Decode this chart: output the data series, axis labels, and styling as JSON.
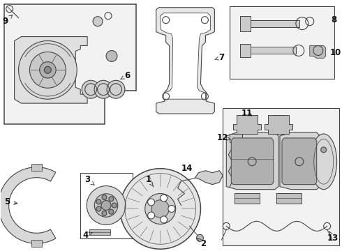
{
  "bg_color": "#ffffff",
  "line_color": "#444444",
  "label_color": "#111111",
  "font_size": 8.5,
  "figsize": [
    4.9,
    3.6
  ],
  "dpi": 100
}
